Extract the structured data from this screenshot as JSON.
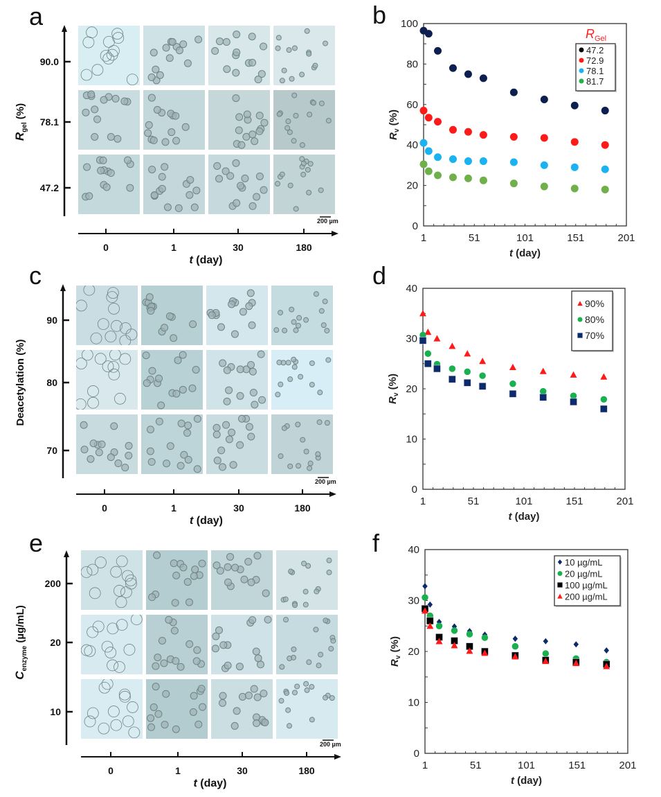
{
  "panels": {
    "a": {
      "letter": "a"
    },
    "b": {
      "letter": "b"
    },
    "c": {
      "letter": "c"
    },
    "d": {
      "letter": "d"
    },
    "e": {
      "letter": "e"
    },
    "f": {
      "letter": "f"
    }
  },
  "micrographs": [
    {
      "panel": "a",
      "ylabel_main": "R",
      "ylabel_sub": "gel",
      "ylabel_suffix": " (%)",
      "ylabel_italic_main": true,
      "row_labels": [
        "90.0",
        "78.1",
        "47.2"
      ],
      "col_labels": [
        "0",
        "1",
        "30",
        "180"
      ],
      "xlabel_italic": "t",
      "xlabel_rest": " (day)",
      "scale_bar": "200 µm"
    },
    {
      "panel": "c",
      "ylabel_main": "Deacetylation",
      "ylabel_sub": "",
      "ylabel_suffix": " (%)",
      "ylabel_italic_main": false,
      "row_labels": [
        "90",
        "80",
        "70"
      ],
      "col_labels": [
        "0",
        "1",
        "30",
        "180"
      ],
      "xlabel_italic": "t",
      "xlabel_rest": " (day)",
      "scale_bar": "200 µm"
    },
    {
      "panel": "e",
      "ylabel_main": "C",
      "ylabel_sub": "enzyme",
      "ylabel_suffix": " (µg/mL)",
      "ylabel_italic_main": true,
      "row_labels": [
        "200",
        "20",
        "10"
      ],
      "col_labels": [
        "0",
        "1",
        "30",
        "180"
      ],
      "xlabel_italic": "t",
      "xlabel_rest": " (day)",
      "scale_bar": "200 µm"
    }
  ],
  "chart_data": [
    {
      "panel": "b",
      "type": "scatter",
      "title": "",
      "xlabel": "t (day)",
      "ylabel": "Rv (%)",
      "xlim": [
        1,
        201
      ],
      "ylim": [
        0,
        100
      ],
      "xticks": [
        1,
        51,
        101,
        151,
        201
      ],
      "yticks": [
        0,
        20,
        40,
        60,
        80,
        100
      ],
      "grid": false,
      "legend_title": "RGel",
      "legend_title_main": "R",
      "legend_title_sub": "Gel",
      "legend_position": "top-right",
      "x": [
        1,
        6,
        15,
        30,
        45,
        60,
        90,
        120,
        150,
        180
      ],
      "series": [
        {
          "name": "47.2",
          "marker": "circle",
          "color": "#0d1f4f",
          "legend_color": "#000000",
          "values": [
            96.5,
            95,
            86.5,
            78,
            75,
            73,
            66,
            62.5,
            59.5,
            57
          ]
        },
        {
          "name": "72.9",
          "marker": "circle",
          "color": "#ff1a1a",
          "legend_color": "#ff1a1a",
          "values": [
            57,
            53.5,
            51.5,
            47.5,
            46.5,
            45,
            44,
            43.5,
            41.5,
            40
          ]
        },
        {
          "name": "78.1",
          "marker": "circle",
          "color": "#1ab2f0",
          "legend_color": "#1ab2f0",
          "values": [
            41,
            37,
            34,
            33,
            32,
            32,
            31.5,
            30,
            29,
            28
          ]
        },
        {
          "name": "81.7",
          "marker": "circle",
          "color": "#6fb04a",
          "legend_color": "#22b14c",
          "values": [
            30.5,
            27,
            25,
            24,
            23.5,
            22.5,
            21,
            19.5,
            18.5,
            18
          ]
        }
      ]
    },
    {
      "panel": "d",
      "type": "scatter",
      "title": "",
      "xlabel": "t (day)",
      "ylabel": "Rv (%)",
      "xlim": [
        1,
        201
      ],
      "ylim": [
        0,
        40
      ],
      "xticks": [
        1,
        51,
        101,
        151,
        201
      ],
      "yticks": [
        0,
        10,
        20,
        30,
        40
      ],
      "grid": false,
      "legend_position": "top-right",
      "x": [
        1,
        6,
        15,
        30,
        45,
        60,
        90,
        120,
        150,
        180
      ],
      "series": [
        {
          "name": "90%",
          "marker": "triangle",
          "color": "#ff1a1a",
          "values": [
            35,
            31.3,
            30,
            28.5,
            27,
            25.5,
            24.3,
            23.5,
            22.8,
            22.4
          ]
        },
        {
          "name": "80%",
          "marker": "circle",
          "color": "#19b04f",
          "values": [
            30.7,
            27,
            24.9,
            24,
            23.4,
            22.6,
            21,
            19.5,
            18.6,
            17.9
          ]
        },
        {
          "name": "70%",
          "marker": "square",
          "color": "#0d2a6b",
          "values": [
            29.6,
            25,
            24,
            21.9,
            21.2,
            20.5,
            19,
            18.3,
            17.4,
            16
          ]
        }
      ]
    },
    {
      "panel": "f",
      "type": "scatter",
      "title": "",
      "xlabel": "t (day)",
      "ylabel": "Rv (%)",
      "xlim": [
        1,
        201
      ],
      "ylim": [
        0,
        40
      ],
      "xticks": [
        1,
        51,
        101,
        151,
        201
      ],
      "yticks": [
        0,
        10,
        20,
        30,
        40
      ],
      "grid": false,
      "legend_position": "top-right",
      "x": [
        1,
        6,
        15,
        30,
        45,
        60,
        90,
        120,
        150,
        180
      ],
      "series": [
        {
          "name": "10 µg/mL",
          "marker": "diamond",
          "color": "#0d2a6b",
          "values": [
            32.8,
            29.2,
            25.8,
            24.9,
            24,
            23.3,
            22.5,
            22,
            21.4,
            20.2
          ]
        },
        {
          "name": "20 µg/mL",
          "marker": "circle",
          "color": "#19b04f",
          "values": [
            30.6,
            27,
            25,
            24.1,
            23.4,
            22.7,
            21,
            19.6,
            18.6,
            17.9
          ]
        },
        {
          "name": "100 µg/mL",
          "marker": "square",
          "color": "#000000",
          "values": [
            28.4,
            26,
            22.8,
            22.1,
            21,
            20,
            19.2,
            18.3,
            17.9,
            17.5
          ]
        },
        {
          "name": "200 µg/mL",
          "marker": "triangle",
          "color": "#ff1a1a",
          "values": [
            28,
            25,
            22,
            21.2,
            20.1,
            19.7,
            19,
            18.1,
            17.7,
            17.1
          ]
        }
      ]
    }
  ]
}
